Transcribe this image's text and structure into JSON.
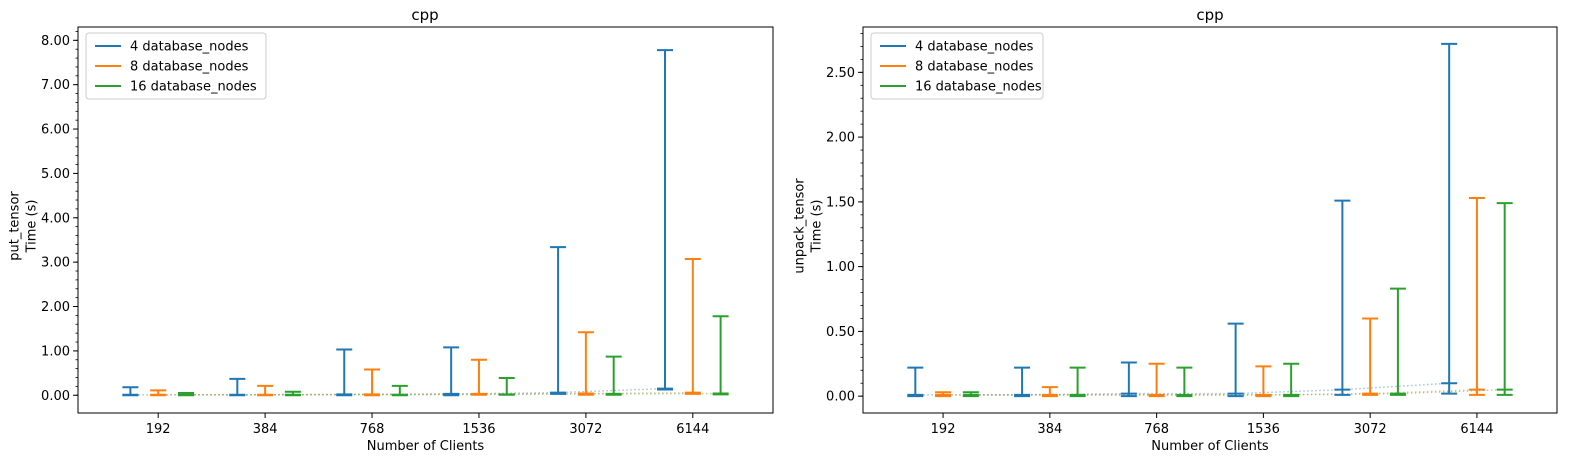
{
  "chart_data": [
    {
      "type": "errorbar",
      "title": "cpp",
      "xlabel": "Number of Clients",
      "ylabel_lines": [
        "put_tensor",
        "Time (s)"
      ],
      "categories": [
        "192",
        "384",
        "768",
        "1536",
        "3072",
        "6144"
      ],
      "ylim": [
        -0.4,
        8.3
      ],
      "yticks": [
        "0.00",
        "1.00",
        "2.00",
        "3.00",
        "4.00",
        "5.00",
        "6.00",
        "7.00",
        "8.00"
      ],
      "ytick_values": [
        0,
        1,
        2,
        3,
        4,
        5,
        6,
        7,
        8
      ],
      "legend_position": "top-left",
      "series": [
        {
          "name": "4 database_nodes",
          "color": "#1f77b4",
          "min": [
            0.0,
            0.0,
            0.0,
            0.0,
            0.03,
            0.13
          ],
          "max": [
            0.18,
            0.37,
            1.03,
            1.08,
            3.34,
            7.78
          ],
          "median": [
            0.01,
            0.01,
            0.02,
            0.03,
            0.06,
            0.15
          ]
        },
        {
          "name": "8 database_nodes",
          "color": "#ff7f0e",
          "min": [
            0.0,
            0.0,
            0.0,
            0.01,
            0.01,
            0.03
          ],
          "max": [
            0.11,
            0.21,
            0.58,
            0.8,
            1.42,
            3.07
          ],
          "median": [
            0.01,
            0.01,
            0.02,
            0.03,
            0.04,
            0.06
          ]
        },
        {
          "name": "16 database_nodes",
          "color": "#2ca02c",
          "min": [
            0.0,
            0.0,
            0.0,
            0.01,
            0.01,
            0.02
          ],
          "max": [
            0.05,
            0.08,
            0.21,
            0.39,
            0.87,
            1.78
          ],
          "median": [
            0.01,
            0.01,
            0.01,
            0.02,
            0.03,
            0.04
          ]
        }
      ]
    },
    {
      "type": "errorbar",
      "title": "cpp",
      "xlabel": "Number of Clients",
      "ylabel_lines": [
        "unpack_tensor",
        "Time (s)"
      ],
      "categories": [
        "192",
        "384",
        "768",
        "1536",
        "3072",
        "6144"
      ],
      "ylim": [
        -0.13,
        2.85
      ],
      "yticks": [
        "0.00",
        "0.50",
        "1.00",
        "1.50",
        "2.00",
        "2.50"
      ],
      "ytick_values": [
        0,
        0.5,
        1.0,
        1.5,
        2.0,
        2.5
      ],
      "legend_position": "top-left",
      "series": [
        {
          "name": "4 database_nodes",
          "color": "#1f77b4",
          "min": [
            0.0,
            0.0,
            0.0,
            0.0,
            0.01,
            0.02
          ],
          "max": [
            0.22,
            0.22,
            0.26,
            0.56,
            1.51,
            2.72
          ],
          "median": [
            0.01,
            0.01,
            0.02,
            0.02,
            0.05,
            0.1
          ]
        },
        {
          "name": "8 database_nodes",
          "color": "#ff7f0e",
          "min": [
            0.0,
            0.0,
            0.0,
            0.0,
            0.01,
            0.01
          ],
          "max": [
            0.03,
            0.07,
            0.25,
            0.23,
            0.6,
            1.53
          ],
          "median": [
            0.01,
            0.01,
            0.01,
            0.01,
            0.02,
            0.05
          ]
        },
        {
          "name": "16 database_nodes",
          "color": "#2ca02c",
          "min": [
            0.0,
            0.0,
            0.0,
            0.0,
            0.01,
            0.01
          ],
          "max": [
            0.03,
            0.22,
            0.22,
            0.25,
            0.83,
            1.49
          ],
          "median": [
            0.01,
            0.01,
            0.01,
            0.01,
            0.02,
            0.05
          ]
        }
      ]
    }
  ]
}
